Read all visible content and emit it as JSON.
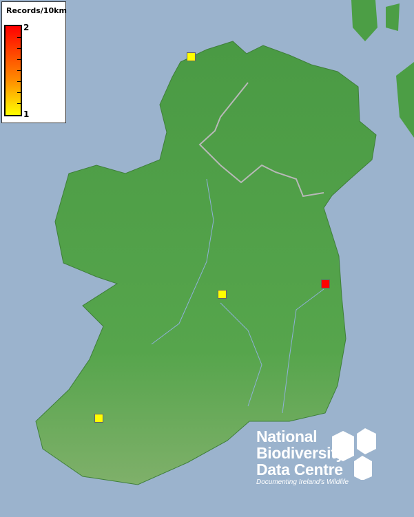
{
  "legend": {
    "title": "Records/10km",
    "max_label": "2",
    "min_label": "1",
    "max_color": "#ff0000",
    "min_color": "#ffff00"
  },
  "logo": {
    "line1": "National",
    "line2": "Biodiversity",
    "line3": "Data Centre",
    "tagline": "Documenting Ireland's Wildlife"
  },
  "records": [
    {
      "value": 1,
      "color": "#ffff00"
    },
    {
      "value": 1,
      "color": "#ffff00"
    },
    {
      "value": 2,
      "color": "#ff0000"
    },
    {
      "value": 1,
      "color": "#ffff00"
    }
  ],
  "colors": {
    "sea": "#9bb3cd",
    "land": "#4c9e45"
  }
}
